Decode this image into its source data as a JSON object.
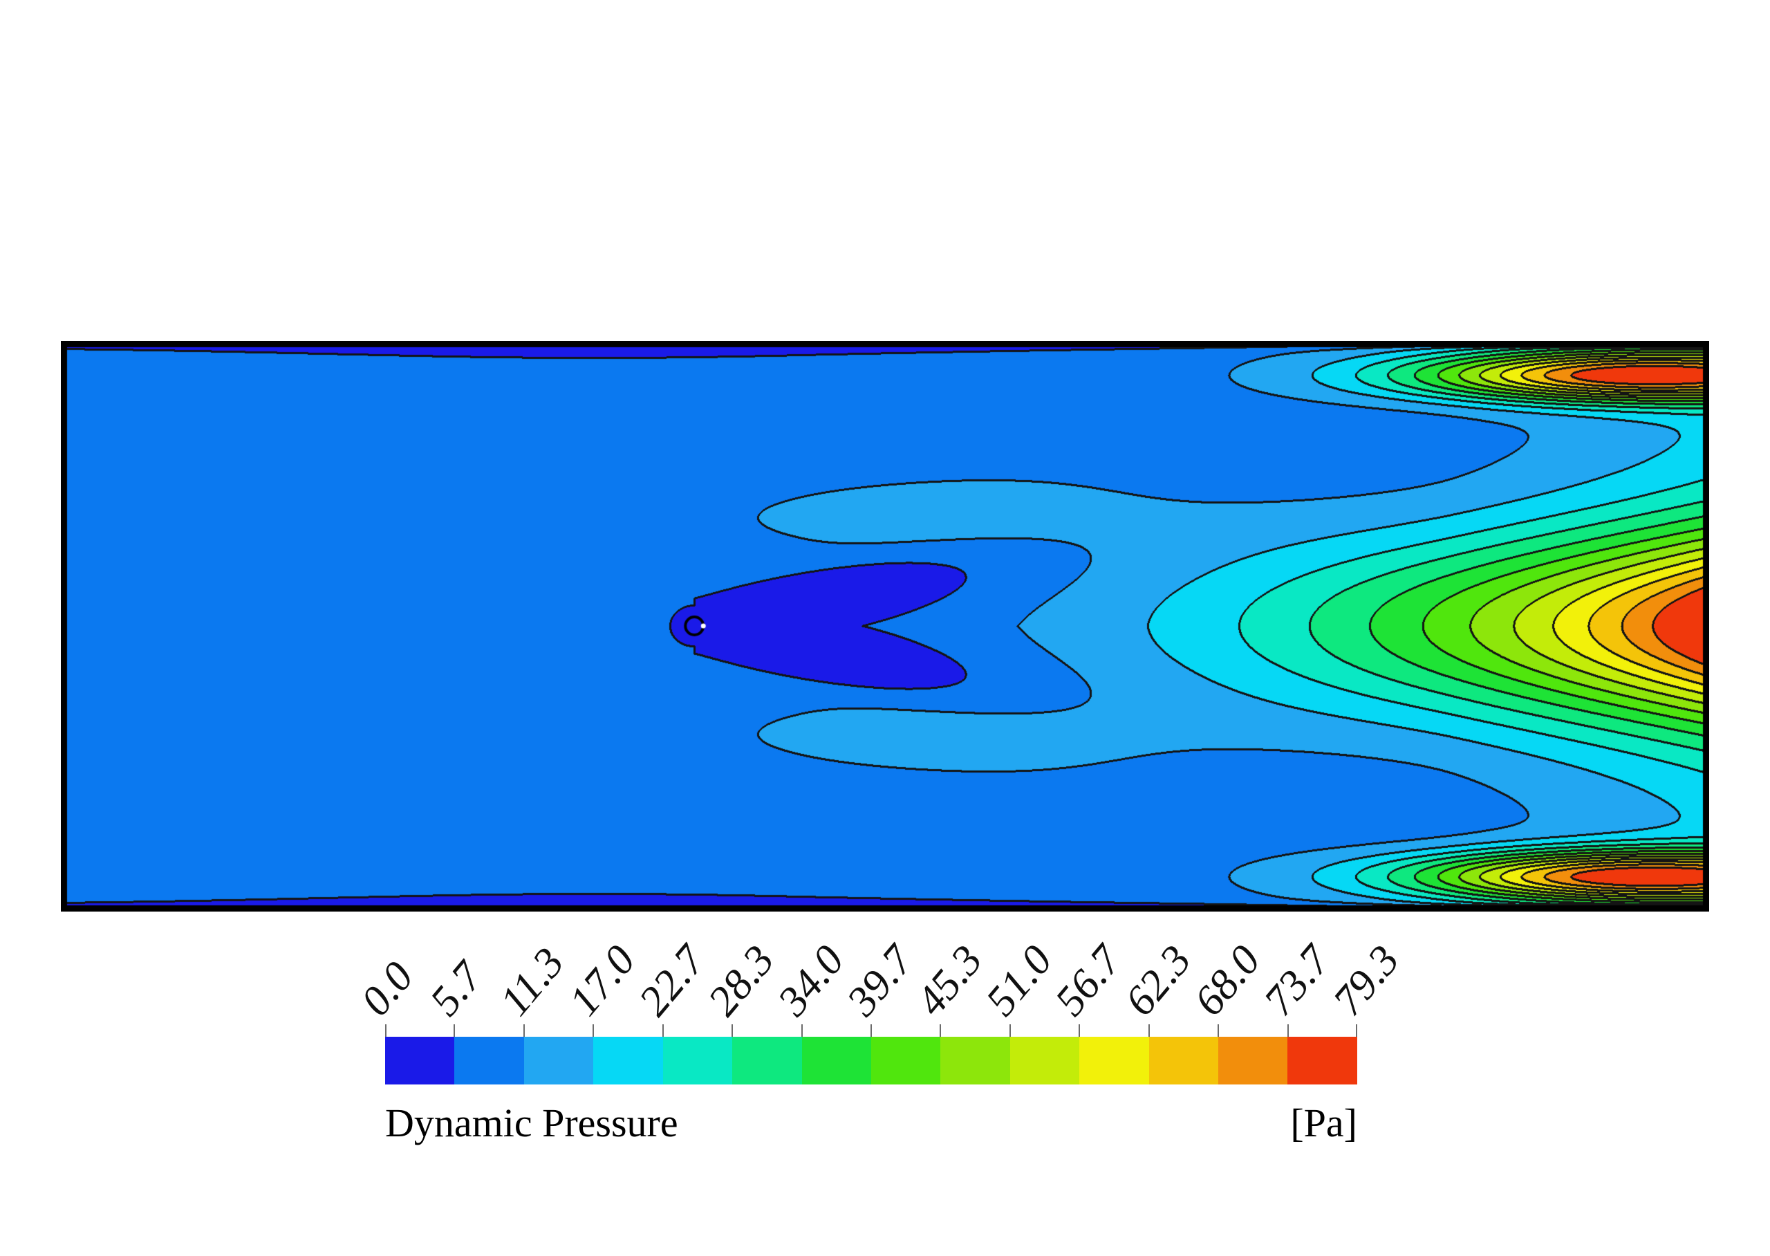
{
  "legend": {
    "title": "Dynamic Pressure",
    "unit": "[Pa]",
    "tick_labels": [
      "0.0",
      "5.7",
      "11.3",
      "17.0",
      "22.7",
      "28.3",
      "34.0",
      "39.7",
      "45.3",
      "51.0",
      "56.7",
      "62.3",
      "68.0",
      "73.7",
      "79.3"
    ]
  },
  "chart_data": {
    "type": "heatmap",
    "subtype": "filled-contour-cfd",
    "title": "Dynamic Pressure",
    "unit": "[Pa]",
    "contour_levels": [
      0.0,
      5.7,
      11.3,
      17.0,
      22.7,
      28.3,
      34.0,
      39.7,
      45.3,
      51.0,
      56.7,
      62.3,
      68.0,
      73.7,
      79.3
    ],
    "value_range": [
      0.0,
      79.3
    ],
    "band_colors": [
      "#1A1AE8",
      "#0B79F0",
      "#22A7F2",
      "#06D8F5",
      "#09E8C4",
      "#0EE87F",
      "#1EE336",
      "#50E60D",
      "#8DE60B",
      "#C3EC09",
      "#F2F10A",
      "#F4C409",
      "#F28E0C",
      "#F0380C"
    ],
    "contour_line_color": "#141414",
    "frame_color": "#000000",
    "legend_position": "bottom",
    "grid": false,
    "features": [
      "rectangular channel domain with thick black frame",
      "uniform low dynamic pressure (second blue band) over left half of channel",
      "thin near-zero (navy) boundary strips along top and bottom walls in left/middle section",
      "small circular obstacle at left-center of channel with navy low-pressure chevron wake pointing downstream",
      "nested left-pointing chevron contour bands increasing from cyan through green, yellow, orange toward outlet",
      "maximum dynamic pressure (red, ~79.3 Pa) at mid-height of right edge",
      "high dynamic pressure tongues with orange lens pockets near top-right and bottom-right walls",
      "low dynamic pressure troughs (cyan/teal) between centerline jet and wall jets at right edge"
    ]
  }
}
